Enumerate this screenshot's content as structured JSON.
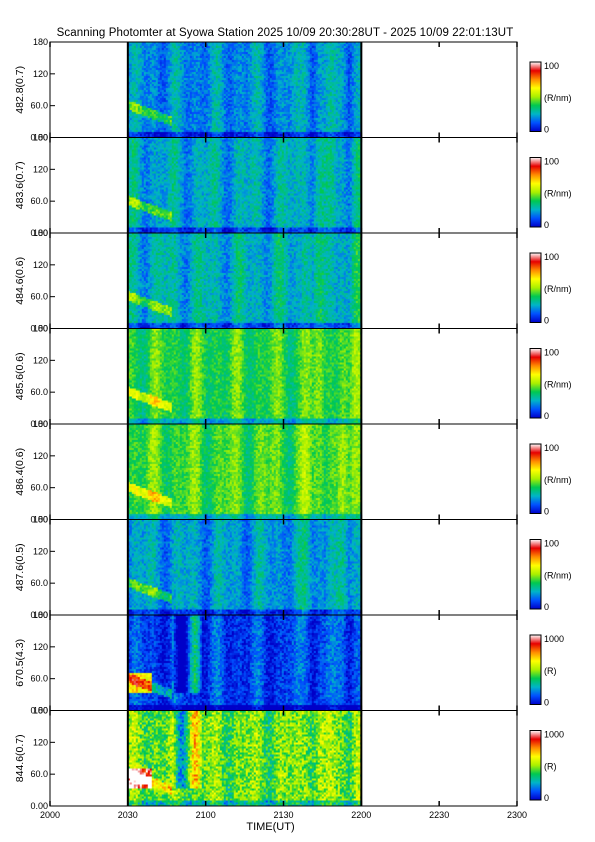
{
  "title": "Scanning Photomter at Syowa Station 2025 10/09 20:30:28UT - 2025 10/09 22:01:13UT",
  "chart_data": {
    "type": "heatmap",
    "xlabel": "TIME(UT)",
    "x_ticks": [
      "2000",
      "2030",
      "2100",
      "2130",
      "2200",
      "2230",
      "2300"
    ],
    "x_range": [
      "2000",
      "2300"
    ],
    "data_range": [
      "2030",
      "2200"
    ],
    "y_ticks": [
      "0.00",
      "60.0",
      "120",
      "180"
    ],
    "y_range": [
      0,
      180
    ],
    "colormap": [
      "#0000c8",
      "#0050ff",
      "#00b4c8",
      "#00c850",
      "#aaf000",
      "#ffff00",
      "#ff8c00",
      "#e60000",
      "#ffffff"
    ],
    "panels": [
      {
        "ylabel": "482.8(0.7)",
        "colorbar_max": "100",
        "colorbar_min": "0",
        "unit": "(R/nm)",
        "base_level": 0.2,
        "variability": 0.07
      },
      {
        "ylabel": "483.6(0.7)",
        "colorbar_max": "100",
        "colorbar_min": "0",
        "unit": "(R/nm)",
        "base_level": 0.24,
        "variability": 0.07
      },
      {
        "ylabel": "484.6(0.6)",
        "colorbar_max": "100",
        "colorbar_min": "0",
        "unit": "(R/nm)",
        "base_level": 0.26,
        "variability": 0.07
      },
      {
        "ylabel": "485.6(0.6)",
        "colorbar_max": "100",
        "colorbar_min": "0",
        "unit": "(R/nm)",
        "base_level": 0.4,
        "variability": 0.06
      },
      {
        "ylabel": "486.4(0.6)",
        "colorbar_max": "100",
        "colorbar_min": "0",
        "unit": "(R/nm)",
        "base_level": 0.42,
        "variability": 0.06
      },
      {
        "ylabel": "487.6(0.5)",
        "colorbar_max": "100",
        "colorbar_min": "0",
        "unit": "(R/nm)",
        "base_level": 0.22,
        "variability": 0.07
      },
      {
        "ylabel": "670.5(4.3)",
        "colorbar_max": "1000",
        "colorbar_min": "0",
        "unit": "(R)",
        "base_level": 0.1,
        "variability": 0.08
      },
      {
        "ylabel": "844.6(0.7)",
        "colorbar_max": "1000",
        "colorbar_min": "0",
        "unit": "(R)",
        "base_level": 0.45,
        "variability": 0.12
      }
    ]
  }
}
